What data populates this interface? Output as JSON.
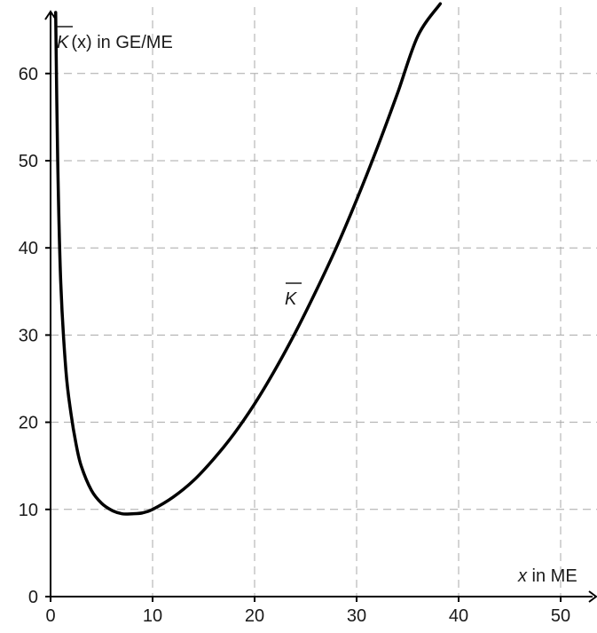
{
  "chart_data": {
    "type": "line",
    "title": "",
    "xlabel_var": "x",
    "xlabel_unit": " in ME",
    "ylabel_var": "K",
    "ylabel_arg": "(x)",
    "ylabel_unit": " in GE/ME",
    "curve_label": "K",
    "xlim": [
      0,
      54
    ],
    "ylim": [
      0,
      67
    ],
    "x_ticks": [
      0,
      10,
      20,
      30,
      40,
      50
    ],
    "y_ticks": [
      0,
      10,
      20,
      30,
      40,
      50,
      60
    ],
    "x_tick_labels": [
      "0",
      "10",
      "20",
      "30",
      "40",
      "50"
    ],
    "y_tick_labels": [
      "0",
      "10",
      "20",
      "30",
      "40",
      "50",
      "60"
    ],
    "grid": true,
    "series": [
      {
        "x": [
          0.5,
          0.7,
          1,
          1.5,
          2,
          2.5,
          3,
          4,
          5,
          6,
          7,
          8,
          9,
          10,
          12,
          14,
          16,
          18,
          20,
          22,
          24,
          26,
          28,
          30,
          32,
          34,
          36,
          38.2
        ],
        "y": [
          67,
          50,
          36,
          26,
          21,
          17.5,
          15,
          12.2,
          10.7,
          9.9,
          9.5,
          9.5,
          9.6,
          10,
          11.4,
          13.3,
          15.8,
          18.7,
          22.1,
          26,
          30.3,
          35,
          40,
          45.5,
          51.4,
          57.7,
          64.3,
          68
        ]
      }
    ]
  }
}
